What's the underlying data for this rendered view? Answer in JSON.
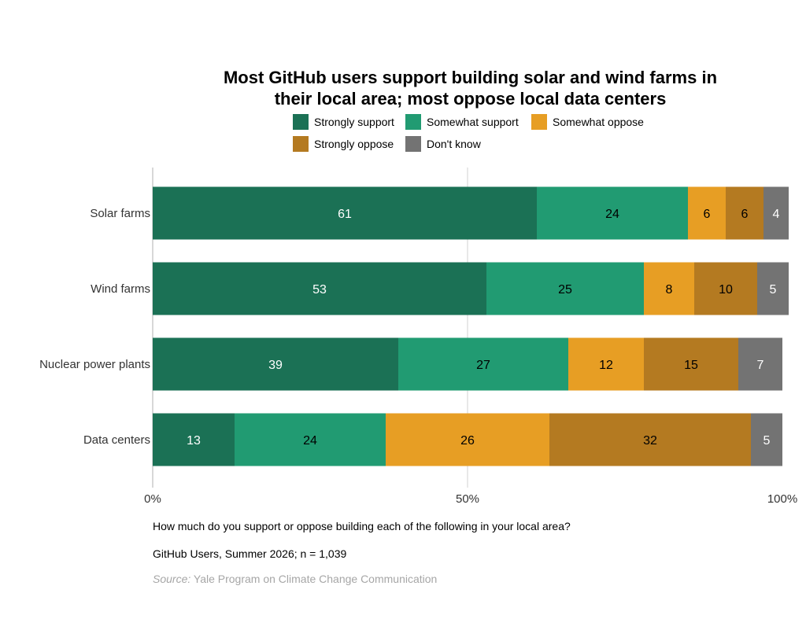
{
  "colors": {
    "strongly_support": "#1b7155",
    "somewhat_support": "#219b72",
    "somewhat_oppose": "#e79e24",
    "strongly_oppose": "#b47a21",
    "dont_know": "#737373"
  },
  "chart_data": {
    "type": "bar",
    "orientation": "horizontal",
    "stacked": true,
    "title_line1": "Most GitHub users support building solar and wind farms in",
    "title_line2": "their local area; most oppose local data centers",
    "categories": [
      "Solar farms",
      "Wind farms",
      "Nuclear power plants",
      "Data centers"
    ],
    "series": [
      {
        "name": "Strongly support",
        "color": "#1b7155",
        "label_color": "#ffffff",
        "values": [
          61,
          53,
          39,
          13
        ]
      },
      {
        "name": "Somewhat support",
        "color": "#219b72",
        "label_color": "#000000",
        "values": [
          24,
          25,
          27,
          24
        ]
      },
      {
        "name": "Somewhat oppose",
        "color": "#e79e24",
        "label_color": "#000000",
        "values": [
          6,
          8,
          12,
          26
        ]
      },
      {
        "name": "Strongly oppose",
        "color": "#b47a21",
        "label_color": "#000000",
        "values": [
          6,
          10,
          15,
          32
        ]
      },
      {
        "name": "Don't know",
        "color": "#737373",
        "label_color": "#ffffff",
        "values": [
          4,
          5,
          7,
          5
        ]
      }
    ],
    "xlim": [
      0,
      100
    ],
    "x_ticks": [
      "0%",
      "50%",
      "100%"
    ],
    "x_tick_values": [
      0,
      50,
      100
    ],
    "grid": "vertical gridline at 50%",
    "legend_position": "top"
  },
  "notes": {
    "question": "How much do you support or oppose building each of the following in your local area?",
    "sample": "GitHub Users, Summer 2026; n = 1,039",
    "source_label": "Source:",
    "source_text": "Yale Program on Climate Change Communication"
  }
}
